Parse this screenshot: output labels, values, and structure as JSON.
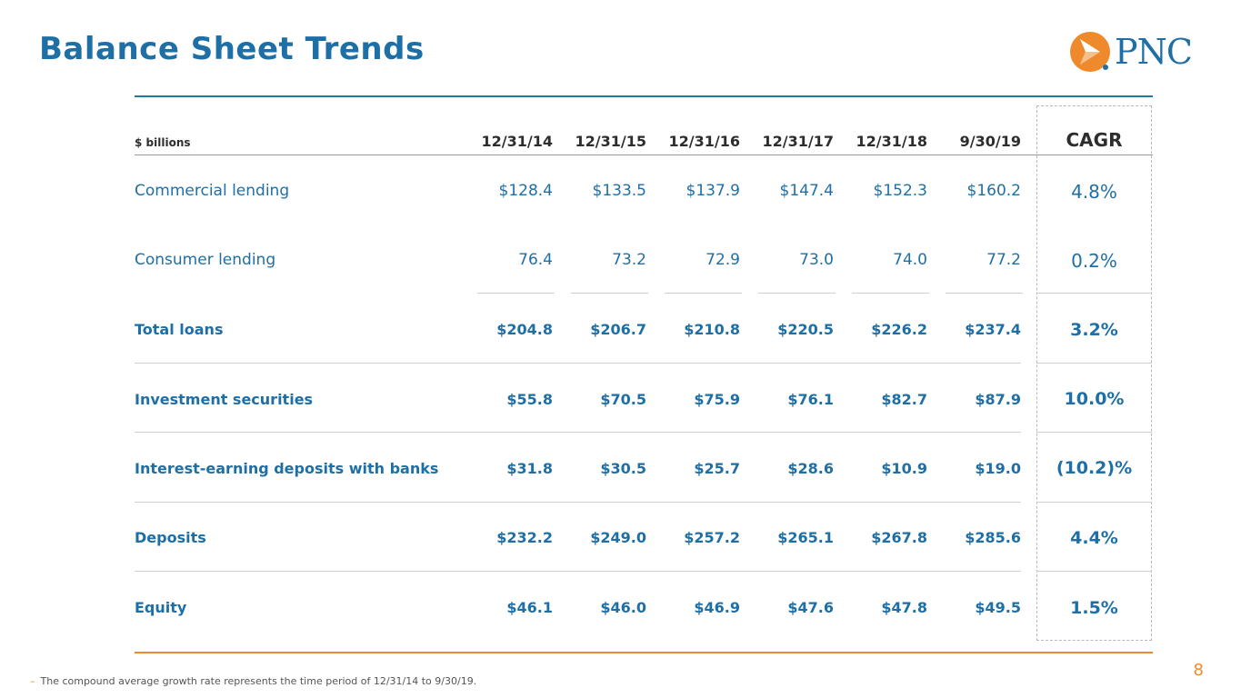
{
  "title": "Balance Sheet Trends",
  "logo": {
    "text": "PNC",
    "icon": "pnc-logo-icon",
    "brand_color": "#1f6fa7",
    "accent_color": "#ef8a2c"
  },
  "table": {
    "unit_label": "$ billions",
    "columns": [
      "12/31/14",
      "12/31/15",
      "12/31/16",
      "12/31/17",
      "12/31/18",
      "9/30/19"
    ],
    "cagr_header": "CAGR",
    "rows": [
      {
        "label": "Commercial lending",
        "values": [
          "$128.4",
          "$133.5",
          "$137.9",
          "$147.4",
          "$152.3",
          "$160.2"
        ],
        "cagr": "4.8%"
      },
      {
        "label": "Consumer lending",
        "values": [
          "76.4",
          "73.2",
          "72.9",
          "73.0",
          "74.0",
          "77.2"
        ],
        "cagr": "0.2%"
      },
      {
        "label": "Total loans",
        "values": [
          "$204.8",
          "$206.7",
          "$210.8",
          "$220.5",
          "$226.2",
          "$237.4"
        ],
        "cagr": "3.2%"
      },
      {
        "label": "Investment securities",
        "values": [
          "$55.8",
          "$70.5",
          "$75.9",
          "$76.1",
          "$82.7",
          "$87.9"
        ],
        "cagr": "10.0%"
      },
      {
        "label": "Interest-earning deposits with banks",
        "values": [
          "$31.8",
          "$30.5",
          "$25.7",
          "$28.6",
          "$10.9",
          "$19.0"
        ],
        "cagr": "(10.2)%"
      },
      {
        "label": "Deposits",
        "values": [
          "$232.2",
          "$249.0",
          "$257.2",
          "$265.1",
          "$267.8",
          "$285.6"
        ],
        "cagr": "4.4%"
      },
      {
        "label": "Equity",
        "values": [
          "$46.1",
          "$46.0",
          "$46.9",
          "$47.6",
          "$47.8",
          "$49.5"
        ],
        "cagr": "1.5%"
      }
    ]
  },
  "page_number": "8",
  "footnote": {
    "bullet": "–",
    "text": "The compound average growth rate represents the time period of 12/31/14 to 9/30/19."
  }
}
